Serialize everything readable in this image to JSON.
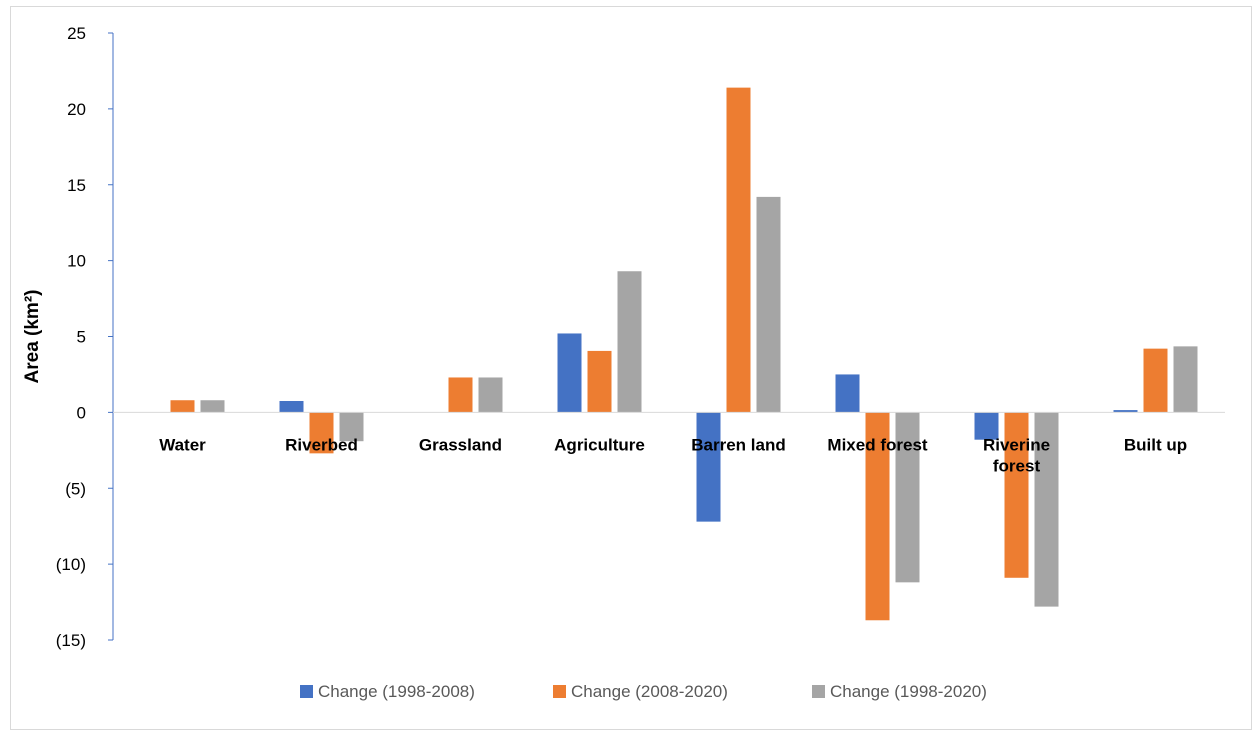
{
  "chart_data": {
    "type": "bar",
    "title": "",
    "xlabel": "",
    "ylabel": "Area (km²)",
    "ylim": [
      -15,
      25
    ],
    "yticks": [
      25,
      20,
      15,
      10,
      5,
      0,
      -5,
      -10,
      -15
    ],
    "ytick_labels": [
      "25",
      "20",
      "15",
      "10",
      "5",
      "0",
      "(5)",
      "(10)",
      "(15)"
    ],
    "categories": [
      [
        "Water"
      ],
      [
        "Riverbed"
      ],
      [
        "Grassland"
      ],
      [
        "Agriculture"
      ],
      [
        "Barren land"
      ],
      [
        "Mixed forest"
      ],
      [
        "Riverine",
        "forest"
      ],
      [
        "Built up"
      ]
    ],
    "series": [
      {
        "name": "Change (1998-2008)",
        "color": "#4472C4",
        "values": [
          0,
          0.75,
          0,
          5.2,
          -7.2,
          2.5,
          -1.8,
          0.15
        ]
      },
      {
        "name": "Change (2008-2020)",
        "color": "#ED7D31",
        "values": [
          0.8,
          -2.7,
          2.3,
          4.05,
          21.4,
          -13.7,
          -10.9,
          4.2
        ]
      },
      {
        "name": "Change (1998-2020)",
        "color": "#A5A5A5",
        "values": [
          0.8,
          -1.9,
          2.3,
          9.3,
          14.2,
          -11.2,
          -12.8,
          4.35
        ]
      }
    ],
    "legend_position": "bottom",
    "grid": false,
    "axis_color": "#4472C4"
  }
}
